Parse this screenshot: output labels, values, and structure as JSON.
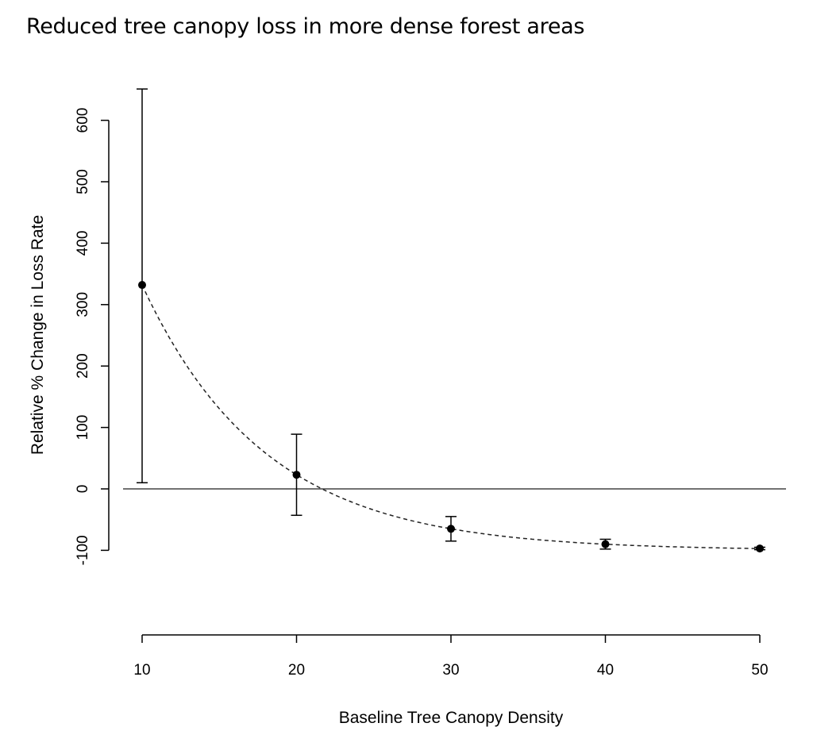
{
  "chart_data": {
    "type": "scatter",
    "title": "Reduced tree canopy loss in more dense forest areas",
    "xlabel": "Baseline Tree Canopy Density",
    "ylabel": "Relative % Change in Loss Rate",
    "xticks": [
      10,
      20,
      30,
      40,
      50
    ],
    "yticks": [
      -100,
      0,
      100,
      200,
      300,
      400,
      500,
      600
    ],
    "xlim": [
      10,
      50
    ],
    "ylim": [
      -100,
      600
    ],
    "grid": false,
    "reference_line_y": 0,
    "points": [
      {
        "x": 10,
        "y": 332,
        "lower": 10,
        "upper": 651
      },
      {
        "x": 20,
        "y": 23,
        "lower": -43,
        "upper": 89
      },
      {
        "x": 30,
        "y": -65,
        "lower": -85,
        "upper": -45
      },
      {
        "x": 40,
        "y": -90,
        "lower": -98,
        "upper": -82
      },
      {
        "x": 50,
        "y": -97,
        "lower": -99,
        "upper": -95
      }
    ],
    "fit_curve": {
      "type": "exponential",
      "style": "dashed",
      "asymptote": -100,
      "amplitude": 432,
      "rate": 0.1256
    }
  }
}
